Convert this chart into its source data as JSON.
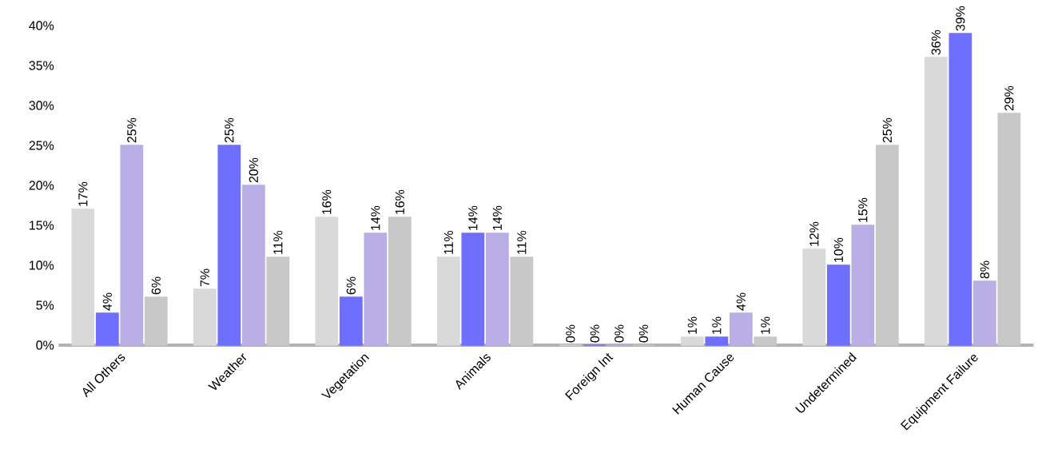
{
  "chart_data": {
    "type": "bar",
    "categories": [
      "All Others",
      "Weather",
      "Vegetation",
      "Animals",
      "Foreign Int",
      "Human Cause",
      "Undetermined",
      "Equipment Failure"
    ],
    "series": [
      {
        "color": "#d9d9d9",
        "values": [
          17,
          7,
          16,
          11,
          0,
          1,
          12,
          36
        ],
        "value_labels": [
          "17%",
          "7%",
          "16%",
          "11%",
          "0%",
          "1%",
          "12%",
          "36%"
        ]
      },
      {
        "color": "#6f6fff",
        "values": [
          4,
          25,
          6,
          14,
          0,
          1,
          10,
          39
        ],
        "value_labels": [
          "4%",
          "25%",
          "6%",
          "14%",
          "0%",
          "1%",
          "10%",
          "39%"
        ]
      },
      {
        "color": "#b9aee6",
        "values": [
          25,
          20,
          14,
          14,
          0,
          4,
          15,
          8
        ],
        "value_labels": [
          "25%",
          "20%",
          "14%",
          "14%",
          "0%",
          "4%",
          "15%",
          "8%"
        ]
      },
      {
        "color": "#c8c8c8",
        "values": [
          6,
          11,
          16,
          11,
          0,
          1,
          25,
          29
        ],
        "value_labels": [
          "6%",
          "11%",
          "16%",
          "11%",
          "0%",
          "1%",
          "25%",
          "29%"
        ]
      }
    ],
    "ylim": [
      0,
      40
    ],
    "yticks": [
      {
        "value": 0,
        "label": "0%"
      },
      {
        "value": 5,
        "label": "5%"
      },
      {
        "value": 10,
        "label": "10%"
      },
      {
        "value": 15,
        "label": "15%"
      },
      {
        "value": 20,
        "label": "20%"
      },
      {
        "value": 25,
        "label": "25%"
      },
      {
        "value": 30,
        "label": "30%"
      },
      {
        "value": 35,
        "label": "35%"
      },
      {
        "value": 40,
        "label": "40%"
      }
    ],
    "grid": false
  }
}
